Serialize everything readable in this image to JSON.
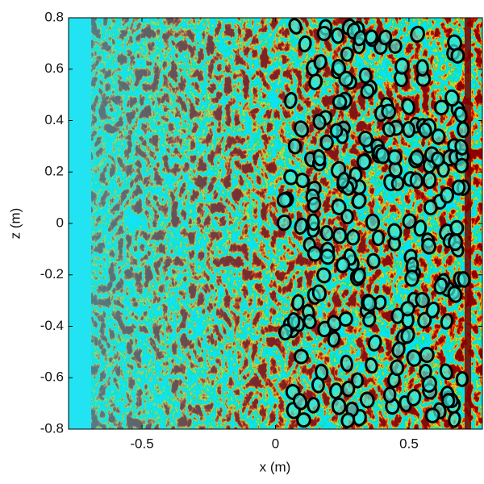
{
  "chart_data": {
    "type": "image",
    "xlabel": "x (m)",
    "ylabel": "z (m)",
    "xlim": [
      -0.775,
      0.775
    ],
    "ylim": [
      -0.8,
      0.8
    ],
    "xticks": [
      -0.5,
      0,
      0.5
    ],
    "yticks": [
      -0.8,
      -0.6,
      -0.4,
      -0.2,
      0,
      0.2,
      0.4,
      0.6,
      0.8
    ],
    "background_color": "#22e3f2",
    "ring_color": "#000000"
  }
}
